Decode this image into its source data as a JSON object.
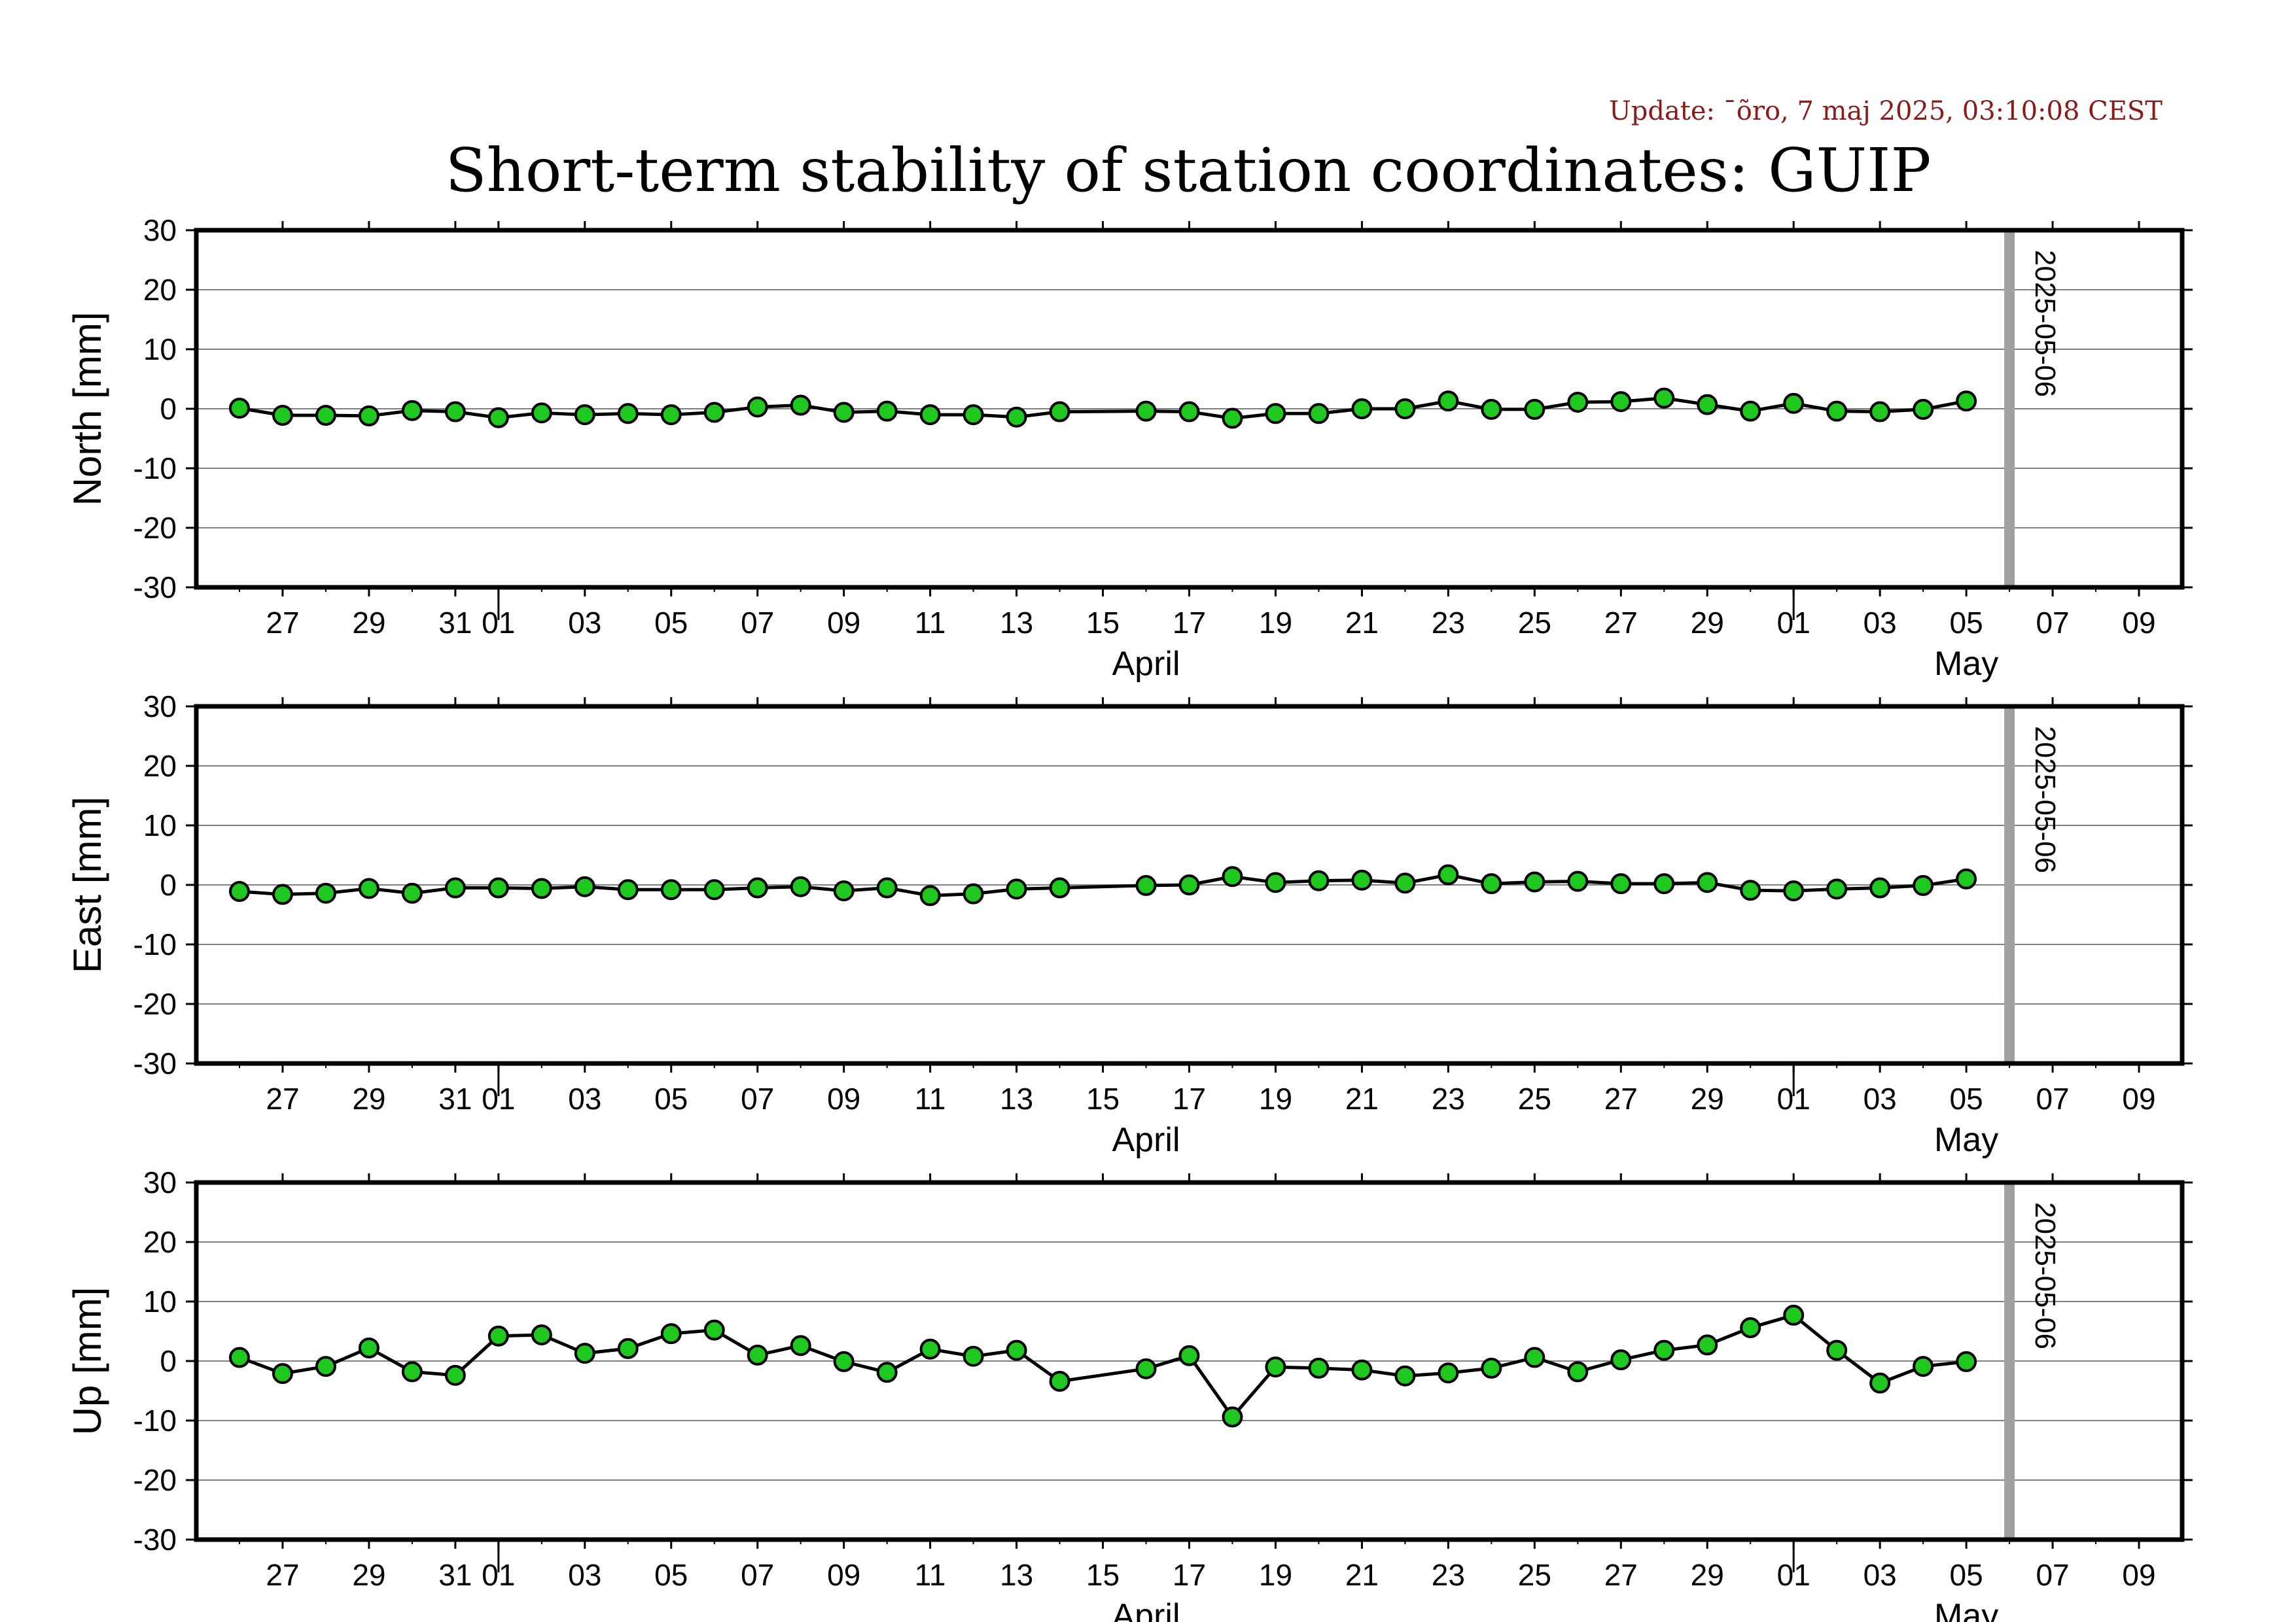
{
  "header": {
    "update_text": "Update: ¯õro, 7 maj 2025, 03:10:08 CEST",
    "title": "Short-term stability of station coordinates: GUIP"
  },
  "chart_data": {
    "type": "line",
    "x_axis": {
      "range": [
        "2025-03-25",
        "2025-05-10"
      ],
      "day_ticks": [
        "2025-03-27",
        "2025-03-29",
        "2025-03-31",
        "2025-04-01",
        "2025-04-03",
        "2025-04-05",
        "2025-04-07",
        "2025-04-09",
        "2025-04-11",
        "2025-04-13",
        "2025-04-15",
        "2025-04-17",
        "2025-04-19",
        "2025-04-21",
        "2025-04-23",
        "2025-04-25",
        "2025-04-27",
        "2025-04-29",
        "2025-05-01",
        "2025-05-03",
        "2025-05-05",
        "2025-05-07",
        "2025-05-09"
      ],
      "day_tick_labels": [
        "27",
        "29",
        "31",
        "01",
        "03",
        "05",
        "07",
        "09",
        "11",
        "13",
        "15",
        "17",
        "19",
        "21",
        "23",
        "25",
        "27",
        "29",
        "01",
        "03",
        "05",
        "07",
        "09"
      ],
      "month_boundaries": [
        "2025-04-01",
        "2025-05-01"
      ],
      "months": [
        {
          "label": "April",
          "center": "2025-04-16"
        },
        {
          "label": "May",
          "center": "2025-05-05"
        }
      ]
    },
    "marker": {
      "date": "2025-05-06",
      "label": "2025-05-06",
      "color": "#a0a0a0"
    },
    "colors": {
      "line": "#000000",
      "point_fill": "#1ec81e",
      "point_edge": "#000000",
      "grid": "#808080"
    },
    "x_dates": [
      "2025-03-26",
      "2025-03-27",
      "2025-03-28",
      "2025-03-29",
      "2025-03-30",
      "2025-03-31",
      "2025-04-01",
      "2025-04-02",
      "2025-04-03",
      "2025-04-04",
      "2025-04-05",
      "2025-04-06",
      "2025-04-07",
      "2025-04-08",
      "2025-04-09",
      "2025-04-10",
      "2025-04-11",
      "2025-04-12",
      "2025-04-13",
      "2025-04-14",
      "2025-04-16",
      "2025-04-17",
      "2025-04-18",
      "2025-04-19",
      "2025-04-20",
      "2025-04-21",
      "2025-04-22",
      "2025-04-23",
      "2025-04-24",
      "2025-04-25",
      "2025-04-26",
      "2025-04-27",
      "2025-04-28",
      "2025-04-29",
      "2025-04-30",
      "2025-05-01",
      "2025-05-02",
      "2025-05-03",
      "2025-05-04",
      "2025-05-05"
    ],
    "panels": [
      {
        "ylabel": "North [mm]",
        "ylim": [
          -30,
          30
        ],
        "yticks": [
          30,
          20,
          10,
          0,
          -10,
          -20,
          -30
        ],
        "grid": true,
        "values": [
          0.1,
          -1.1,
          -1.1,
          -1.2,
          -0.3,
          -0.5,
          -1.5,
          -0.7,
          -1.0,
          -0.8,
          -1.0,
          -0.6,
          0.3,
          0.6,
          -0.6,
          -0.4,
          -1.0,
          -1.0,
          -1.4,
          -0.5,
          -0.4,
          -0.5,
          -1.6,
          -0.8,
          -0.8,
          0.0,
          0.0,
          1.3,
          -0.1,
          -0.1,
          1.1,
          1.2,
          1.8,
          0.7,
          -0.4,
          0.9,
          -0.4,
          -0.5,
          -0.1,
          1.3
        ]
      },
      {
        "ylabel": "East [mm]",
        "ylim": [
          -30,
          30
        ],
        "yticks": [
          30,
          20,
          10,
          0,
          -10,
          -20,
          -30
        ],
        "grid": true,
        "values": [
          -1.1,
          -1.6,
          -1.4,
          -0.6,
          -1.4,
          -0.5,
          -0.5,
          -0.6,
          -0.3,
          -0.8,
          -0.8,
          -0.8,
          -0.5,
          -0.3,
          -1.0,
          -0.5,
          -1.8,
          -1.5,
          -0.7,
          -0.5,
          -0.1,
          0.0,
          1.4,
          0.4,
          0.7,
          0.8,
          0.3,
          1.7,
          0.2,
          0.5,
          0.6,
          0.2,
          0.2,
          0.4,
          -0.9,
          -1.0,
          -0.7,
          -0.5,
          -0.1,
          1.0
        ]
      },
      {
        "ylabel": "Up [mm]",
        "ylim": [
          -30,
          30
        ],
        "yticks": [
          30,
          20,
          10,
          0,
          -10,
          -20,
          -30
        ],
        "grid": true,
        "values": [
          0.6,
          -2.1,
          -0.9,
          2.2,
          -1.8,
          -2.4,
          4.2,
          4.4,
          1.3,
          2.1,
          4.6,
          5.2,
          1.0,
          2.6,
          -0.1,
          -1.9,
          2.0,
          0.8,
          1.8,
          -3.4,
          -1.3,
          0.9,
          -9.4,
          -1.0,
          -1.2,
          -1.5,
          -2.5,
          -2.0,
          -1.2,
          0.6,
          -1.8,
          0.2,
          1.8,
          2.7,
          5.6,
          7.7,
          1.8,
          -3.7,
          -0.9,
          -0.1
        ]
      }
    ]
  }
}
